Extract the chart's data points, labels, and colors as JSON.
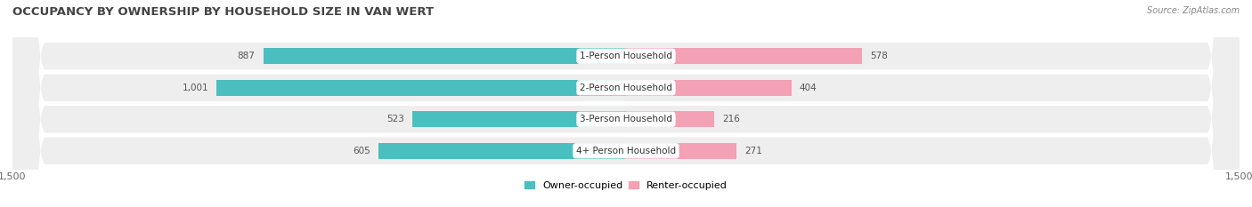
{
  "title": "OCCUPANCY BY OWNERSHIP BY HOUSEHOLD SIZE IN VAN WERT",
  "source": "Source: ZipAtlas.com",
  "categories": [
    "1-Person Household",
    "2-Person Household",
    "3-Person Household",
    "4+ Person Household"
  ],
  "owner_values": [
    887,
    1001,
    523,
    605
  ],
  "renter_values": [
    578,
    404,
    216,
    271
  ],
  "owner_color": "#4BBFBF",
  "renter_color": "#F4A0B5",
  "axis_max": 1500,
  "bar_height": 0.52,
  "bg_color": "#FFFFFF",
  "row_bg_color": "#EEEEEE",
  "title_fontsize": 9.5,
  "bar_label_fontsize": 7.5,
  "cat_label_fontsize": 7.5,
  "axis_label_fontsize": 8,
  "legend_fontsize": 8,
  "source_fontsize": 7
}
